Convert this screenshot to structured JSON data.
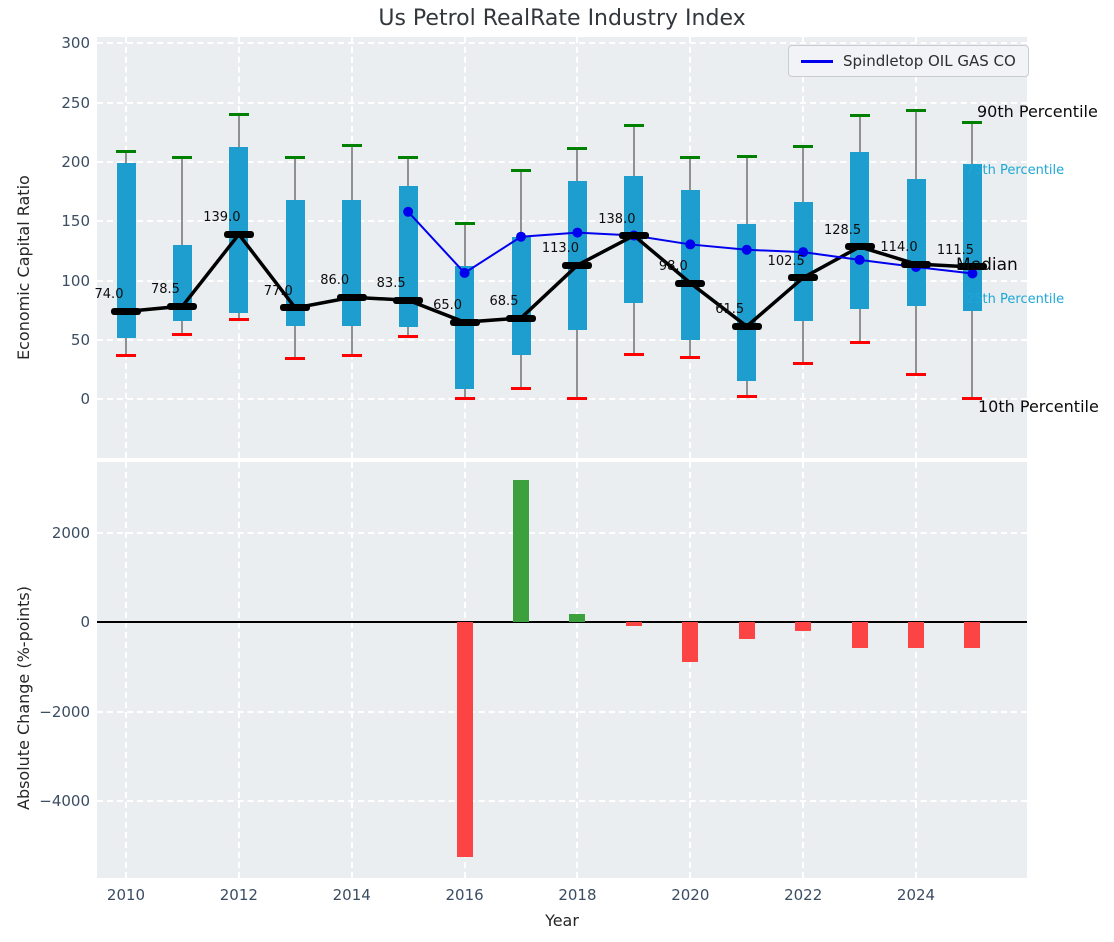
{
  "title": "Us Petrol RealRate Industry Index",
  "legend": {
    "label": "Spindletop OIL GAS CO"
  },
  "annotations": {
    "p90": "90th Percentile",
    "p75": "75th Percentile",
    "median": "Median",
    "p25": "25th Percentile",
    "p10": "10th Percentile"
  },
  "colors": {
    "box": "#1e9ecf",
    "cap_high": "#008000",
    "cap_low": "#ff0000",
    "whisker": "#909090",
    "median_line": "#000000",
    "company_line": "#0000ee",
    "bar_positive": "#3ca03c",
    "bar_negative": "#fc4444",
    "axes_bg": "#eaeef0",
    "grid": "#ffffff",
    "tick_text": "#3b4d63",
    "cyan_label": "#1da7d6"
  },
  "chart_data": [
    {
      "type": "boxplot+line",
      "title": "Us Petrol RealRate Industry Index",
      "ylabel": "Economic Capital Ratio",
      "ylim": [
        -50,
        306
      ],
      "yticks": [
        0,
        50,
        100,
        150,
        200,
        250,
        300
      ],
      "xticks": [
        2010,
        2012,
        2014,
        2016,
        2018,
        2020,
        2022,
        2024
      ],
      "grid": true,
      "legend_position": "upper right",
      "years": [
        2010,
        2011,
        2012,
        2013,
        2014,
        2015,
        2016,
        2017,
        2018,
        2019,
        2020,
        2021,
        2022,
        2023,
        2024,
        2025
      ],
      "p90": [
        209,
        204,
        240,
        204,
        214,
        204,
        148,
        193,
        211,
        231,
        204,
        205,
        213,
        239,
        243,
        233
      ],
      "q75": [
        199,
        130,
        213,
        168,
        168,
        180,
        112,
        137,
        184,
        188,
        176,
        148,
        166,
        208,
        186,
        198
      ],
      "median": [
        74.0,
        78.5,
        139.0,
        77.0,
        86.0,
        83.5,
        65.0,
        68.5,
        113.0,
        138.0,
        98.0,
        61.5,
        102.5,
        128.5,
        114.0,
        111.5
      ],
      "q25": [
        52,
        66,
        73,
        62,
        62,
        61,
        9,
        37,
        58,
        81,
        50,
        15,
        66,
        76,
        79,
        74
      ],
      "p10": [
        37,
        55,
        67,
        34,
        37,
        53,
        1,
        9,
        1,
        38,
        35,
        2,
        30,
        48,
        21,
        1
      ],
      "company": {
        "name": "Spindletop OIL GAS CO",
        "x": [
          2015,
          2016,
          2017,
          2018,
          2019,
          2020,
          2021,
          2022,
          2023,
          2024,
          2025
        ],
        "values": [
          158,
          106.5,
          137,
          140.5,
          138,
          130.5,
          126,
          124,
          117.5,
          111.5,
          106
        ]
      }
    },
    {
      "type": "bar",
      "ylabel": "Absolute Change (%-points)",
      "xlabel": "Year",
      "ylim": [
        -5600,
        3600
      ],
      "yticks": [
        2000,
        0,
        -2000,
        -4000
      ],
      "xticks": [
        2010,
        2012,
        2014,
        2016,
        2018,
        2020,
        2022,
        2024
      ],
      "grid": true,
      "x": [
        2016,
        2017,
        2018,
        2019,
        2020,
        2021,
        2022,
        2023,
        2024,
        2025
      ],
      "values": [
        -5260,
        3190,
        190,
        -80,
        -890,
        -380,
        -200,
        -580,
        -580,
        -570
      ]
    }
  ]
}
